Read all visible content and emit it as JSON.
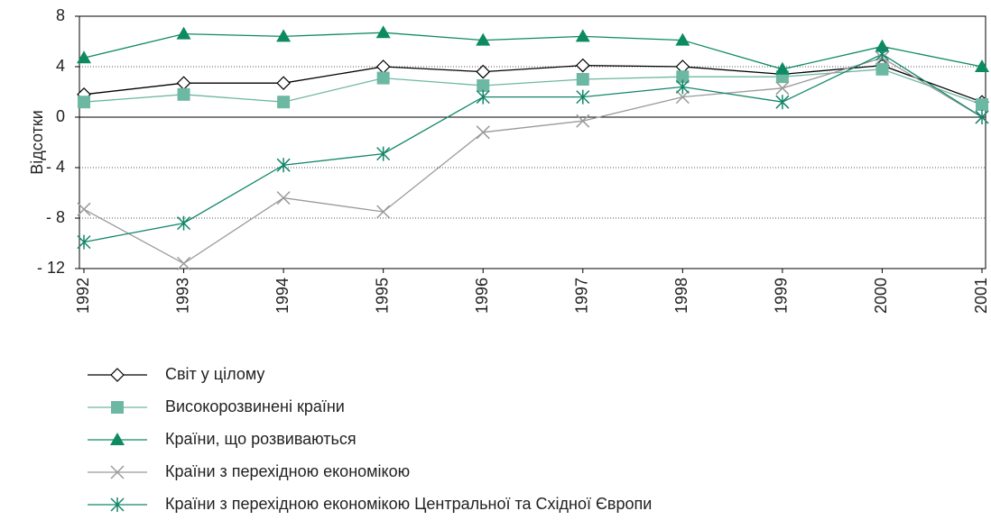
{
  "chart_data": {
    "type": "line",
    "ylabel": "Відсотки",
    "x": [
      "1992",
      "1993",
      "1994",
      "1995",
      "1996",
      "1997",
      "1998",
      "1999",
      "2000",
      "2001"
    ],
    "ylim": [
      -12,
      8
    ],
    "yticks": [
      {
        "value": -12,
        "label": "- 12"
      },
      {
        "value": -8,
        "label": "- 8"
      },
      {
        "value": -4,
        "label": "- 4"
      },
      0,
      4,
      8
    ],
    "grid": true,
    "legend": "bottom",
    "series": [
      {
        "name": "Світ у цілому",
        "color": "#000000",
        "marker": "diamond",
        "values": [
          1.8,
          2.7,
          2.7,
          4.0,
          3.6,
          4.1,
          4.0,
          3.4,
          4.1,
          1.2
        ]
      },
      {
        "name": "Високорозвинені країни",
        "color": "#6db8a2",
        "marker": "square",
        "values": [
          1.2,
          1.8,
          1.2,
          3.1,
          2.5,
          3.0,
          3.2,
          3.2,
          3.8,
          1.0
        ]
      },
      {
        "name": "Країни, що розвиваються",
        "color": "#0e8a62",
        "marker": "triangle",
        "values": [
          4.7,
          6.6,
          6.4,
          6.7,
          6.1,
          6.4,
          6.1,
          3.8,
          5.6,
          4.0
        ]
      },
      {
        "name": "Країни з перехідною економікою",
        "color": "#9a9a9a",
        "marker": "x",
        "values": [
          -7.3,
          -11.6,
          -6.4,
          -7.5,
          -1.2,
          -0.3,
          1.6,
          2.3,
          4.7,
          0
        ]
      },
      {
        "name": "Країни з перехідною економікою Центральної та Східної Європи",
        "color": "#12866a",
        "marker": "star",
        "values": [
          -9.9,
          -8.4,
          -3.8,
          -2.9,
          1.6,
          1.6,
          2.4,
          1.2,
          5.0,
          0
        ]
      }
    ]
  }
}
